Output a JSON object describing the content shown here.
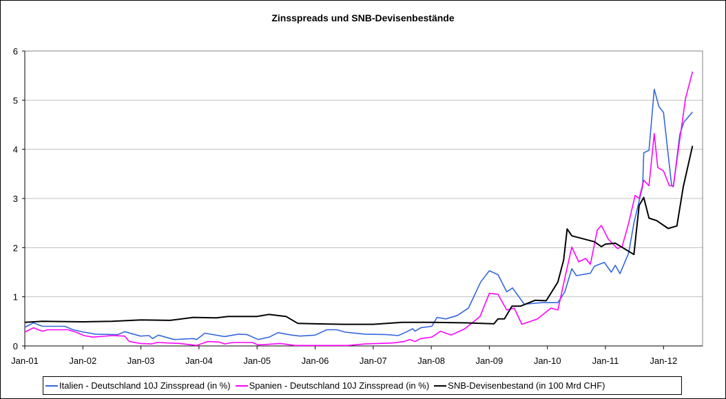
{
  "chart_data": {
    "type": "line",
    "title": "Zinsspreads und SNB-Devisenbestände",
    "xlabel": "",
    "ylabel": "",
    "ylim": [
      0,
      6
    ],
    "xlim": [
      2001.0,
      2012.7
    ],
    "grid": true,
    "legend_position": "bottom",
    "y_ticks": [
      "0",
      "1",
      "2",
      "3",
      "4",
      "5",
      "6"
    ],
    "x_ticks": [
      {
        "label": "Jan-01",
        "x": 2001
      },
      {
        "label": "Jan-02",
        "x": 2002
      },
      {
        "label": "Jan-03",
        "x": 2003
      },
      {
        "label": "Jan-04",
        "x": 2004
      },
      {
        "label": "Jan-05",
        "x": 2005
      },
      {
        "label": "Jan-06",
        "x": 2006
      },
      {
        "label": "Jan-07",
        "x": 2007
      },
      {
        "label": "Jan-08",
        "x": 2008
      },
      {
        "label": "Jan-09",
        "x": 2009
      },
      {
        "label": "Jan-10",
        "x": 2010
      },
      {
        "label": "Jan-11",
        "x": 2011
      },
      {
        "label": "Jan-12",
        "x": 2012
      }
    ],
    "series": [
      {
        "name": "Italien - Deutschland 10J Zinsspread (in %)",
        "color": "#3366dd",
        "points": [
          [
            2001.0,
            0.38
          ],
          [
            2001.15,
            0.47
          ],
          [
            2001.3,
            0.4
          ],
          [
            2001.69,
            0.4
          ],
          [
            2001.83,
            0.33
          ],
          [
            2002.02,
            0.28
          ],
          [
            2002.22,
            0.24
          ],
          [
            2002.6,
            0.23
          ],
          [
            2002.72,
            0.29
          ],
          [
            2002.99,
            0.2
          ],
          [
            2003.14,
            0.21
          ],
          [
            2003.2,
            0.15
          ],
          [
            2003.3,
            0.22
          ],
          [
            2003.57,
            0.13
          ],
          [
            2003.9,
            0.15
          ],
          [
            2003.96,
            0.13
          ],
          [
            2004.1,
            0.26
          ],
          [
            2004.44,
            0.19
          ],
          [
            2004.68,
            0.24
          ],
          [
            2004.83,
            0.23
          ],
          [
            2005.02,
            0.13
          ],
          [
            2005.21,
            0.18
          ],
          [
            2005.36,
            0.27
          ],
          [
            2005.6,
            0.22
          ],
          [
            2005.74,
            0.2
          ],
          [
            2006.0,
            0.22
          ],
          [
            2006.2,
            0.33
          ],
          [
            2006.37,
            0.33
          ],
          [
            2006.52,
            0.28
          ],
          [
            2006.86,
            0.24
          ],
          [
            2007.24,
            0.23
          ],
          [
            2007.43,
            0.21
          ],
          [
            2007.58,
            0.29
          ],
          [
            2007.68,
            0.35
          ],
          [
            2007.72,
            0.3
          ],
          [
            2007.82,
            0.37
          ],
          [
            2008.01,
            0.4
          ],
          [
            2008.1,
            0.58
          ],
          [
            2008.25,
            0.55
          ],
          [
            2008.45,
            0.62
          ],
          [
            2008.64,
            0.77
          ],
          [
            2008.85,
            1.3
          ],
          [
            2009.0,
            1.53
          ],
          [
            2009.15,
            1.45
          ],
          [
            2009.3,
            1.1
          ],
          [
            2009.4,
            1.18
          ],
          [
            2009.6,
            0.85
          ],
          [
            2009.9,
            0.88
          ],
          [
            2010.18,
            0.88
          ],
          [
            2010.3,
            1.1
          ],
          [
            2010.42,
            1.57
          ],
          [
            2010.5,
            1.43
          ],
          [
            2010.74,
            1.48
          ],
          [
            2010.81,
            1.62
          ],
          [
            2010.98,
            1.7
          ],
          [
            2011.1,
            1.5
          ],
          [
            2011.17,
            1.64
          ],
          [
            2011.25,
            1.47
          ],
          [
            2011.4,
            1.89
          ],
          [
            2011.49,
            2.5
          ],
          [
            2011.64,
            3.25
          ],
          [
            2011.66,
            3.93
          ],
          [
            2011.75,
            3.98
          ],
          [
            2011.84,
            5.22
          ],
          [
            2011.92,
            4.87
          ],
          [
            2012.0,
            4.75
          ],
          [
            2012.06,
            4.1
          ],
          [
            2012.14,
            3.26
          ],
          [
            2012.17,
            3.24
          ],
          [
            2012.28,
            4.3
          ],
          [
            2012.35,
            4.55
          ],
          [
            2012.5,
            4.76
          ]
        ]
      },
      {
        "name": "Spanien - Deutschland 10J Zinsspread (in %)",
        "color": "#ff00ff",
        "points": [
          [
            2001.0,
            0.28
          ],
          [
            2001.15,
            0.37
          ],
          [
            2001.3,
            0.3
          ],
          [
            2001.4,
            0.33
          ],
          [
            2001.74,
            0.33
          ],
          [
            2001.88,
            0.28
          ],
          [
            2002.02,
            0.21
          ],
          [
            2002.17,
            0.18
          ],
          [
            2002.5,
            0.21
          ],
          [
            2002.72,
            0.2
          ],
          [
            2002.8,
            0.09
          ],
          [
            2002.99,
            0.05
          ],
          [
            2003.18,
            0.04
          ],
          [
            2003.28,
            0.07
          ],
          [
            2003.67,
            0.05
          ],
          [
            2003.96,
            0.01
          ],
          [
            2004.15,
            0.09
          ],
          [
            2004.34,
            0.08
          ],
          [
            2004.44,
            0.04
          ],
          [
            2004.58,
            0.07
          ],
          [
            2004.92,
            0.07
          ],
          [
            2005.02,
            0.02
          ],
          [
            2005.4,
            0.05
          ],
          [
            2005.65,
            0.01
          ],
          [
            2006.0,
            0.01
          ],
          [
            2006.56,
            0.01
          ],
          [
            2006.86,
            0.04
          ],
          [
            2007.34,
            0.06
          ],
          [
            2007.53,
            0.09
          ],
          [
            2007.63,
            0.13
          ],
          [
            2007.72,
            0.09
          ],
          [
            2007.82,
            0.15
          ],
          [
            2008.01,
            0.18
          ],
          [
            2008.16,
            0.3
          ],
          [
            2008.34,
            0.22
          ],
          [
            2008.58,
            0.35
          ],
          [
            2008.84,
            0.6
          ],
          [
            2009.0,
            1.07
          ],
          [
            2009.15,
            1.05
          ],
          [
            2009.3,
            0.73
          ],
          [
            2009.43,
            0.77
          ],
          [
            2009.56,
            0.44
          ],
          [
            2009.83,
            0.55
          ],
          [
            2010.06,
            0.77
          ],
          [
            2010.18,
            0.73
          ],
          [
            2010.3,
            1.38
          ],
          [
            2010.42,
            2.01
          ],
          [
            2010.54,
            1.71
          ],
          [
            2010.66,
            1.78
          ],
          [
            2010.74,
            1.66
          ],
          [
            2010.86,
            2.36
          ],
          [
            2010.93,
            2.45
          ],
          [
            2011.05,
            2.17
          ],
          [
            2011.21,
            1.98
          ],
          [
            2011.29,
            2.03
          ],
          [
            2011.4,
            2.5
          ],
          [
            2011.51,
            3.06
          ],
          [
            2011.58,
            3.0
          ],
          [
            2011.66,
            3.37
          ],
          [
            2011.75,
            3.26
          ],
          [
            2011.84,
            4.32
          ],
          [
            2011.9,
            3.63
          ],
          [
            2012.0,
            3.56
          ],
          [
            2012.1,
            3.26
          ],
          [
            2012.17,
            3.26
          ],
          [
            2012.28,
            4.2
          ],
          [
            2012.38,
            5.04
          ],
          [
            2012.5,
            5.58
          ]
        ]
      },
      {
        "name": "SNB-Devisenbestand (in 100 Mrd CHF)",
        "color": "#000000",
        "points": [
          [
            2001.0,
            0.48
          ],
          [
            2001.3,
            0.5
          ],
          [
            2002.0,
            0.49
          ],
          [
            2002.5,
            0.5
          ],
          [
            2003.0,
            0.53
          ],
          [
            2003.5,
            0.52
          ],
          [
            2003.9,
            0.58
          ],
          [
            2004.3,
            0.57
          ],
          [
            2004.5,
            0.6
          ],
          [
            2005.0,
            0.6
          ],
          [
            2005.2,
            0.64
          ],
          [
            2005.5,
            0.6
          ],
          [
            2005.7,
            0.46
          ],
          [
            2006.0,
            0.45
          ],
          [
            2006.5,
            0.44
          ],
          [
            2007.0,
            0.44
          ],
          [
            2007.5,
            0.48
          ],
          [
            2008.0,
            0.48
          ],
          [
            2008.6,
            0.47
          ],
          [
            2009.08,
            0.45
          ],
          [
            2009.15,
            0.55
          ],
          [
            2009.26,
            0.55
          ],
          [
            2009.39,
            0.81
          ],
          [
            2009.54,
            0.81
          ],
          [
            2009.79,
            0.93
          ],
          [
            2009.98,
            0.92
          ],
          [
            2010.18,
            1.3
          ],
          [
            2010.28,
            1.75
          ],
          [
            2010.34,
            2.38
          ],
          [
            2010.42,
            2.24
          ],
          [
            2010.81,
            2.12
          ],
          [
            2010.93,
            2.02
          ],
          [
            2011.0,
            2.07
          ],
          [
            2011.17,
            2.09
          ],
          [
            2011.49,
            1.86
          ],
          [
            2011.58,
            2.86
          ],
          [
            2011.66,
            3.02
          ],
          [
            2011.75,
            2.6
          ],
          [
            2011.88,
            2.55
          ],
          [
            2012.08,
            2.39
          ],
          [
            2012.23,
            2.44
          ],
          [
            2012.34,
            3.24
          ],
          [
            2012.5,
            4.07
          ]
        ]
      }
    ]
  }
}
